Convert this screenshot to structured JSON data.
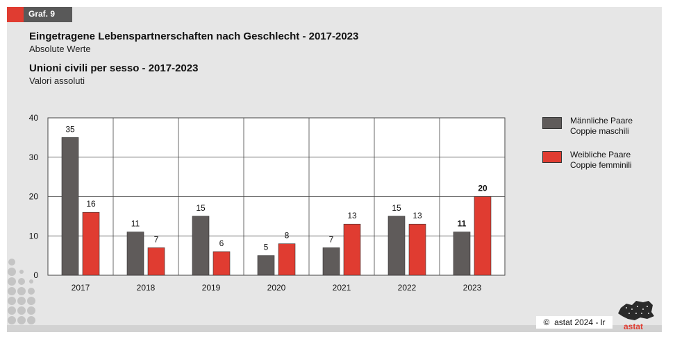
{
  "badge": {
    "label": "Graf. 9"
  },
  "titles": {
    "title_de": "Eingetragene Lebenspartnerschaften nach Geschlecht - 2017-2023",
    "subtitle_de": "Absolute Werte",
    "title_it": "Unioni civili per sesso - 2017-2023",
    "subtitle_it": "Valori assoluti"
  },
  "legend": {
    "male_de": "Männliche Paare",
    "male_it": "Coppie maschili",
    "female_de": "Weibliche Paare",
    "female_it": "Coppie femminili"
  },
  "colors": {
    "male": "#5f5b5a",
    "female": "#e03c31",
    "accent": "#e03c31",
    "badge": "#595959"
  },
  "footer": {
    "copyright": "astat 2024 - lr",
    "copyright_symbol": "©",
    "logo_text": "astat"
  },
  "chart_data": {
    "type": "bar",
    "categories": [
      "2017",
      "2018",
      "2019",
      "2020",
      "2021",
      "2022",
      "2023"
    ],
    "series": [
      {
        "name": "Männliche Paare / Coppie maschili",
        "values": [
          35,
          11,
          15,
          5,
          7,
          15,
          11
        ]
      },
      {
        "name": "Weibliche Paare / Coppie femminili",
        "values": [
          16,
          7,
          6,
          8,
          13,
          13,
          20
        ]
      }
    ],
    "ylim": [
      0,
      40
    ],
    "yticks": [
      0,
      10,
      20,
      30,
      40
    ],
    "grid": true,
    "legend_position": "right",
    "highlight_category": "2023"
  }
}
